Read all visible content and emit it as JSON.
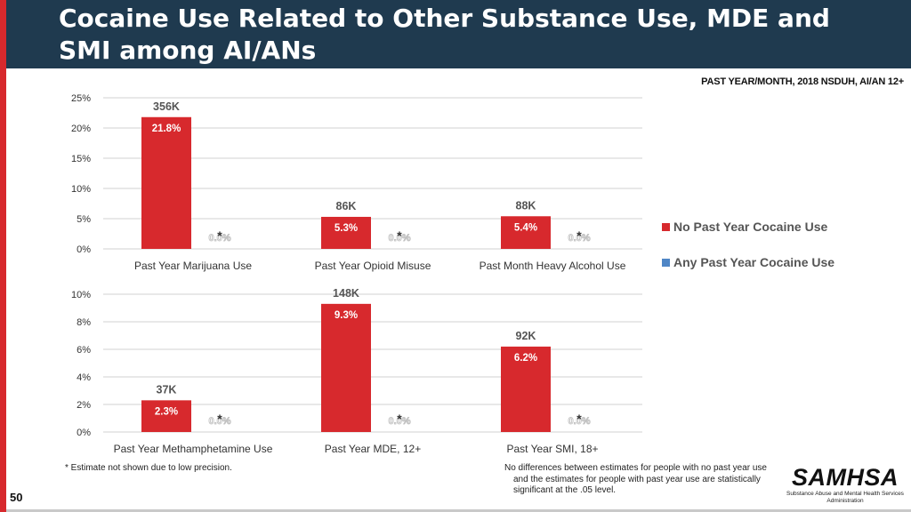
{
  "header": {
    "title": "Cocaine Use Related to Other Substance Use, MDE and SMI among AI/ANs",
    "subtitle": "PAST YEAR/MONTH, 2018 NSDUH, AI/AN 12+"
  },
  "legend": {
    "items": [
      {
        "label": "No Past Year Cocaine Use",
        "color": "#d7292d"
      },
      {
        "label": "Any Past Year Cocaine Use",
        "color": "#4f86c6"
      }
    ]
  },
  "chart_data": [
    {
      "type": "bar",
      "title": "",
      "ylabel": "",
      "ylim": [
        0,
        25
      ],
      "yticks": [
        0,
        5,
        10,
        15,
        20,
        25
      ],
      "ytick_labels": [
        "0%",
        "5%",
        "10%",
        "15%",
        "20%",
        "25%"
      ],
      "grid": true,
      "categories": [
        "Past Year Marijuana Use",
        "Past Year Opioid Misuse",
        "Past Month Heavy Alcohol Use"
      ],
      "series": [
        {
          "name": "No Past Year Cocaine Use",
          "values": [
            21.8,
            5.3,
            5.4
          ],
          "labels": [
            "21.8%",
            "5.3%",
            "5.4%"
          ],
          "count_labels": [
            "356K",
            "86K",
            "88K"
          ]
        },
        {
          "name": "Any Past Year Cocaine Use",
          "values": [
            0.0,
            0.0,
            0.0
          ],
          "labels": [
            "0.0%",
            "0.0%",
            "0.0%"
          ],
          "annotations": [
            "*",
            "*",
            "*"
          ]
        }
      ]
    },
    {
      "type": "bar",
      "title": "",
      "ylabel": "",
      "ylim": [
        0,
        10
      ],
      "yticks": [
        0,
        2,
        4,
        6,
        8,
        10
      ],
      "ytick_labels": [
        "0%",
        "2%",
        "4%",
        "6%",
        "8%",
        "10%"
      ],
      "grid": true,
      "categories": [
        "Past Year Methamphetamine Use",
        "Past Year MDE, 12+",
        "Past Year SMI, 18+"
      ],
      "series": [
        {
          "name": "No Past Year Cocaine Use",
          "values": [
            2.3,
            9.3,
            6.2
          ],
          "labels": [
            "2.3%",
            "9.3%",
            "6.2%"
          ],
          "count_labels": [
            "37K",
            "148K",
            "92K"
          ]
        },
        {
          "name": "Any Past Year Cocaine Use",
          "values": [
            0.0,
            0.0,
            0.0
          ],
          "labels": [
            "0.0%",
            "0.0%",
            "0.0%"
          ],
          "annotations": [
            "*",
            "*",
            "*"
          ]
        }
      ]
    }
  ],
  "footnotes": {
    "left": "* Estimate not shown due to low precision.",
    "right": "No differences between estimates for people with no past year use and the estimates for people with past year use are statistically significant at the .05 level."
  },
  "page_number": "50",
  "logo": {
    "word": "SAMHSA",
    "sub": "Substance Abuse and Mental Health Services Administration"
  }
}
